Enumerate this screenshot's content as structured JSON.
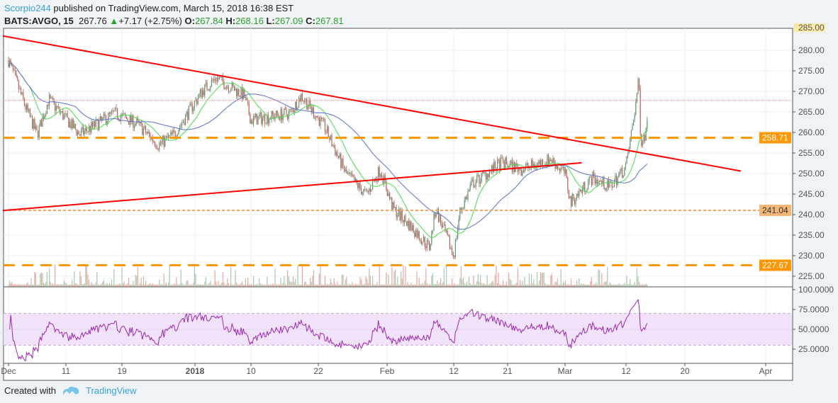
{
  "header": {
    "user": "Scorpio244",
    "published": "published on TradingView.com, March 15, 2018 16:38 EST",
    "symbol": "BATS:AVGO, 15",
    "last": "267.76",
    "change": "+7.17 (+2.75%)",
    "o_label": "O:",
    "o": "267.84",
    "h_label": "H:",
    "h": "268.16",
    "l_label": "L:",
    "l": "267.09",
    "c_label": "C:",
    "c": "267.81"
  },
  "footer": {
    "created": "Created with",
    "brand": "TradingView",
    "logo_icon": "tradingview-cloud-icon"
  },
  "colors": {
    "trendline": "#ff0000",
    "level": "#ff9800",
    "level_dotted": "#f5a55a",
    "ma_fast": "#4cd94c",
    "ma_slow": "#5b73c4",
    "rsi": "#9c27b0",
    "rsi_band": "#f1e3fb",
    "up": "#6a8f72",
    "down": "#b5655c"
  },
  "chart_data": {
    "type": "candlestick",
    "interval": "15",
    "price_axis": {
      "ticks": [
        "285.00",
        "280.00",
        "275.00",
        "270.00",
        "265.00",
        "260.00",
        "255.00",
        "250.00",
        "245.00",
        "240.00",
        "235.00",
        "230.00",
        "225.00"
      ],
      "range": [
        223,
        285
      ]
    },
    "time_axis": {
      "ticks": [
        "Dec",
        "11",
        "19",
        "2018",
        "10",
        "22",
        "Feb",
        "12",
        "21",
        "Mar",
        "12",
        "20",
        "Apr"
      ]
    },
    "rsi_axis": {
      "ticks": [
        "100.0000",
        "75.0000",
        "50.0000",
        "25.0000"
      ],
      "band": [
        30,
        70
      ]
    },
    "price_path": [
      [
        "2017-12-01",
        277.6
      ],
      [
        "2017-12-04",
        266
      ],
      [
        "2017-12-06",
        259.5
      ],
      [
        "2017-12-08",
        268
      ],
      [
        "2017-12-13",
        259.5
      ],
      [
        "2017-12-18",
        264.7
      ],
      [
        "2017-12-22",
        262
      ],
      [
        "2017-12-26",
        257
      ],
      [
        "2017-12-29",
        259.5
      ],
      [
        "2018-01-03",
        270
      ],
      [
        "2018-01-05",
        273.3
      ],
      [
        "2018-01-09",
        269
      ],
      [
        "2018-01-10",
        263
      ],
      [
        "2018-01-17",
        264.7
      ],
      [
        "2018-01-19",
        269
      ],
      [
        "2018-01-23",
        261
      ],
      [
        "2018-01-26",
        250
      ],
      [
        "2018-01-29",
        244.8
      ],
      [
        "2018-01-31",
        251
      ],
      [
        "2018-02-02",
        241.4
      ],
      [
        "2018-02-05",
        237
      ],
      [
        "2018-02-08",
        232
      ],
      [
        "2018-02-09",
        241.4
      ],
      [
        "2018-02-12",
        230
      ],
      [
        "2018-02-13",
        240.5
      ],
      [
        "2018-02-15",
        247.4
      ],
      [
        "2018-02-20",
        252.6
      ],
      [
        "2018-02-23",
        251
      ],
      [
        "2018-02-27",
        253.5
      ],
      [
        "2018-03-01",
        250
      ],
      [
        "2018-03-02",
        243
      ],
      [
        "2018-03-06",
        249
      ],
      [
        "2018-03-09",
        246.6
      ],
      [
        "2018-03-12",
        251.7
      ],
      [
        "2018-03-13",
        263
      ],
      [
        "2018-03-13T18:00",
        273
      ],
      [
        "2018-03-14",
        257.8
      ],
      [
        "2018-03-14T18:00",
        260
      ],
      [
        "2018-03-15",
        268
      ]
    ],
    "trendlines": [
      {
        "from": [
          "2017-11-30",
          283.5
        ],
        "to": [
          "2018-03-29",
          250.6
        ]
      },
      {
        "from": [
          "2017-11-30",
          241
        ],
        "to": [
          "2018-03-04",
          252.6
        ]
      }
    ],
    "levels": [
      {
        "value": 258.71,
        "label": "258.71",
        "style": "dashed"
      },
      {
        "value": 241.04,
        "label": "241.04",
        "style": "dotted"
      },
      {
        "value": 227.67,
        "label": "227.67",
        "style": "dashed"
      }
    ],
    "last_price": 267.81
  }
}
